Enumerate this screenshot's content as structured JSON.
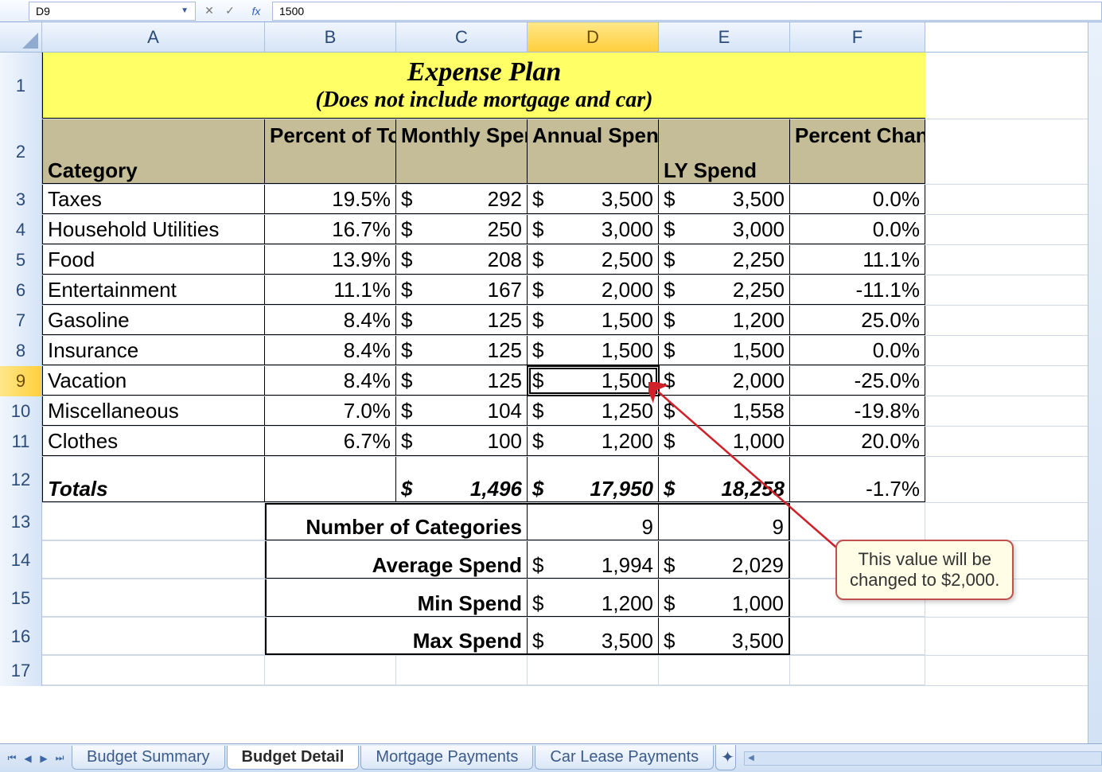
{
  "formula_bar": {
    "cell_ref": "D9",
    "fx_label": "fx",
    "value": "1500"
  },
  "columns": {
    "A": "A",
    "B": "B",
    "C": "C",
    "D": "D",
    "E": "E",
    "F": "F"
  },
  "row_nums": [
    "1",
    "2",
    "3",
    "4",
    "5",
    "6",
    "7",
    "8",
    "9",
    "10",
    "11",
    "12",
    "13",
    "14",
    "15",
    "16",
    "17"
  ],
  "title": {
    "line1": "Expense Plan",
    "line2": "(Does not include mortgage and car)"
  },
  "headers": {
    "A": "Category",
    "B": "Percent of Total",
    "C": "Monthly Spend",
    "D": "Annual Spend",
    "E": "LY Spend",
    "F": "Percent Change"
  },
  "rows": [
    {
      "cat": "Taxes",
      "pct": "19.5%",
      "mon": "292",
      "ann": "3,500",
      "ly": "3,500",
      "chg": "0.0%"
    },
    {
      "cat": "Household Utilities",
      "pct": "16.7%",
      "mon": "250",
      "ann": "3,000",
      "ly": "3,000",
      "chg": "0.0%"
    },
    {
      "cat": "Food",
      "pct": "13.9%",
      "mon": "208",
      "ann": "2,500",
      "ly": "2,250",
      "chg": "11.1%"
    },
    {
      "cat": "Entertainment",
      "pct": "11.1%",
      "mon": "167",
      "ann": "2,000",
      "ly": "2,250",
      "chg": "-11.1%"
    },
    {
      "cat": "Gasoline",
      "pct": "8.4%",
      "mon": "125",
      "ann": "1,500",
      "ly": "1,200",
      "chg": "25.0%"
    },
    {
      "cat": "Insurance",
      "pct": "8.4%",
      "mon": "125",
      "ann": "1,500",
      "ly": "1,500",
      "chg": "0.0%"
    },
    {
      "cat": "Vacation",
      "pct": "8.4%",
      "mon": "125",
      "ann": "1,500",
      "ly": "2,000",
      "chg": "-25.0%"
    },
    {
      "cat": "Miscellaneous",
      "pct": "7.0%",
      "mon": "104",
      "ann": "1,250",
      "ly": "1,558",
      "chg": "-19.8%"
    },
    {
      "cat": "Clothes",
      "pct": "6.7%",
      "mon": "100",
      "ann": "1,200",
      "ly": "1,000",
      "chg": "20.0%"
    }
  ],
  "totals": {
    "label": "Totals",
    "mon": "1,496",
    "ann": "17,950",
    "ly": "18,258",
    "chg": "-1.7%"
  },
  "summary": {
    "num_cat": {
      "label": "Number of Categories",
      "d": "9",
      "e": "9"
    },
    "avg": {
      "label": "Average Spend",
      "d": "1,994",
      "e": "2,029"
    },
    "min": {
      "label": "Min Spend",
      "d": "1,200",
      "e": "1,000"
    },
    "max": {
      "label": "Max Spend",
      "d": "3,500",
      "e": "3,500"
    }
  },
  "tabs": {
    "t1": "Budget Summary",
    "t2": "Budget Detail",
    "t3": "Mortgage Payments",
    "t4": "Car Lease Payments"
  },
  "callout": {
    "line1": "This value will be",
    "line2": "changed to $2,000."
  },
  "dollar": "$",
  "colors": {
    "title_bg": "#ffff66",
    "header_bg": "#c4bd97",
    "callout_border": "#c0504d",
    "callout_bg": "#fffde6"
  }
}
